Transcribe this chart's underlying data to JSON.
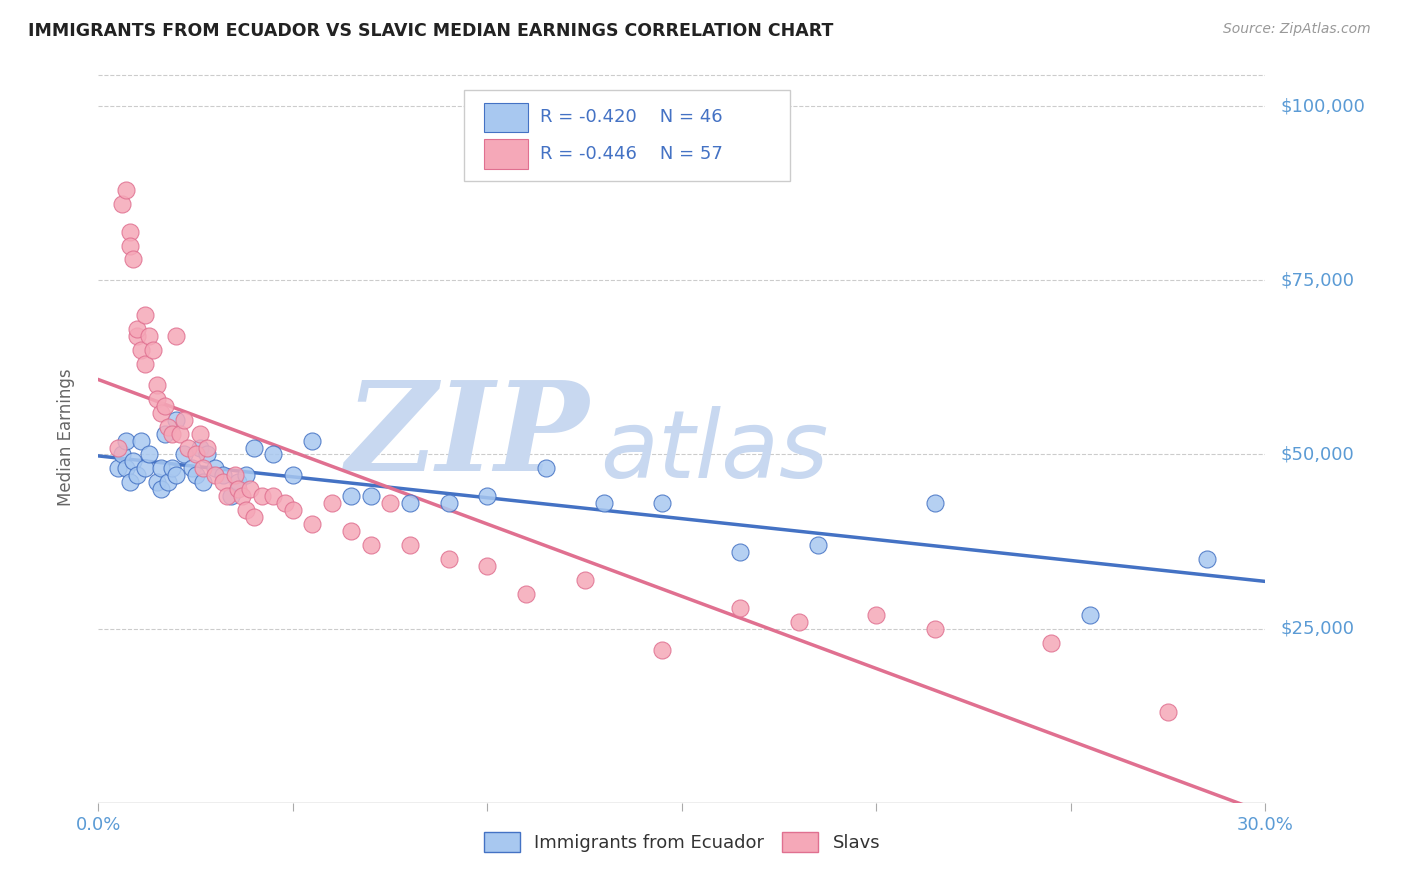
{
  "title": "IMMIGRANTS FROM ECUADOR VS SLAVIC MEDIAN EARNINGS CORRELATION CHART",
  "source": "Source: ZipAtlas.com",
  "ylabel": "Median Earnings",
  "legend_label1": "Immigrants from Ecuador",
  "legend_label2": "Slavs",
  "legend_r1": "-0.420",
  "legend_n1": "46",
  "legend_r2": "-0.446",
  "legend_n2": "57",
  "color_ecuador": "#A8C8F0",
  "color_slavs": "#F5A8B8",
  "color_line_ecuador": "#4472C4",
  "color_line_slavs": "#E07090",
  "color_axis_labels": "#5B9BD5",
  "watermark_zip": "ZIP",
  "watermark_atlas": "atlas",
  "watermark_color": "#C8D8F0",
  "background_color": "#FFFFFF",
  "ecuador_x": [
    0.005,
    0.006,
    0.007,
    0.007,
    0.008,
    0.009,
    0.01,
    0.011,
    0.012,
    0.013,
    0.015,
    0.016,
    0.016,
    0.017,
    0.018,
    0.019,
    0.02,
    0.02,
    0.022,
    0.024,
    0.025,
    0.026,
    0.027,
    0.028,
    0.03,
    0.032,
    0.034,
    0.036,
    0.038,
    0.04,
    0.045,
    0.05,
    0.055,
    0.065,
    0.07,
    0.08,
    0.09,
    0.1,
    0.115,
    0.13,
    0.145,
    0.165,
    0.185,
    0.215,
    0.255,
    0.285
  ],
  "ecuador_y": [
    48000,
    50000,
    52000,
    48000,
    46000,
    49000,
    47000,
    52000,
    48000,
    50000,
    46000,
    48000,
    45000,
    53000,
    46000,
    48000,
    55000,
    47000,
    50000,
    48000,
    47000,
    51000,
    46000,
    50000,
    48000,
    47000,
    44000,
    46000,
    47000,
    51000,
    50000,
    47000,
    52000,
    44000,
    44000,
    43000,
    43000,
    44000,
    48000,
    43000,
    43000,
    36000,
    37000,
    43000,
    27000,
    35000
  ],
  "slavs_x": [
    0.005,
    0.006,
    0.007,
    0.008,
    0.008,
    0.009,
    0.01,
    0.01,
    0.011,
    0.012,
    0.012,
    0.013,
    0.014,
    0.015,
    0.015,
    0.016,
    0.017,
    0.018,
    0.019,
    0.02,
    0.021,
    0.022,
    0.023,
    0.025,
    0.026,
    0.027,
    0.028,
    0.03,
    0.032,
    0.033,
    0.035,
    0.036,
    0.037,
    0.038,
    0.039,
    0.04,
    0.042,
    0.045,
    0.048,
    0.05,
    0.055,
    0.06,
    0.065,
    0.07,
    0.075,
    0.08,
    0.09,
    0.1,
    0.11,
    0.125,
    0.145,
    0.165,
    0.18,
    0.2,
    0.215,
    0.245,
    0.275
  ],
  "slavs_y": [
    51000,
    86000,
    88000,
    82000,
    80000,
    78000,
    67000,
    68000,
    65000,
    70000,
    63000,
    67000,
    65000,
    60000,
    58000,
    56000,
    57000,
    54000,
    53000,
    67000,
    53000,
    55000,
    51000,
    50000,
    53000,
    48000,
    51000,
    47000,
    46000,
    44000,
    47000,
    45000,
    44000,
    42000,
    45000,
    41000,
    44000,
    44000,
    43000,
    42000,
    40000,
    43000,
    39000,
    37000,
    43000,
    37000,
    35000,
    34000,
    30000,
    32000,
    22000,
    28000,
    26000,
    27000,
    25000,
    23000,
    13000
  ],
  "xmin": 0.0,
  "xmax": 0.3,
  "ymin": 0,
  "ymax": 105000,
  "ytick_vals": [
    25000,
    50000,
    75000,
    100000
  ],
  "ytick_labels": [
    "$25,000",
    "$50,000",
    "$75,000",
    "$100,000"
  ],
  "xtick_positions": [
    0.0,
    0.05,
    0.1,
    0.15,
    0.2,
    0.25,
    0.3
  ]
}
